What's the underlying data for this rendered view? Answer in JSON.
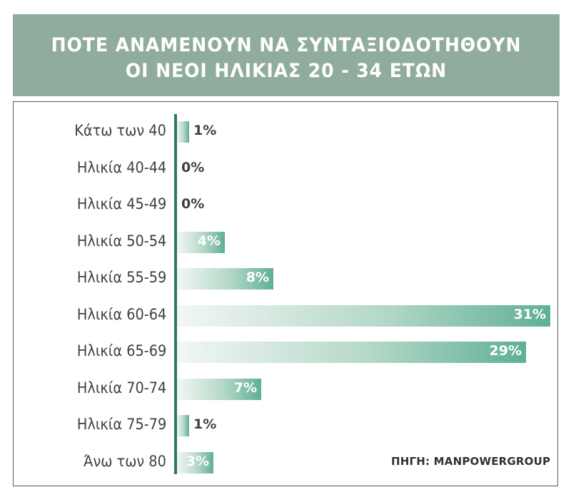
{
  "title": {
    "line1": "ΠΟΤΕ ΑΝΑΜΕΝΟΥΝ ΝΑ ΣΥΝΤΑΞΙΟΔΟΤΗΘΟΥΝ",
    "line2": "ΟΙ ΝΕΟΙ ΗΛΙΚΙΑΣ 20 - 34 ΕΤΩΝ"
  },
  "source": "ΠΗΓΗ: MANPOWERGROUP",
  "colors": {
    "header_bg": "#8fac9d",
    "axis": "#2f7a62",
    "bar_end": "#5fb094",
    "bar_start": "#f2f7f4"
  },
  "chart_data": {
    "type": "bar",
    "orientation": "horizontal",
    "title": "ΠΟΤΕ ΑΝΑΜΕΝΟΥΝ ΝΑ ΣΥΝΤΑΞΙΟΔΟΤΗΘΟΥΝ ΟΙ ΝΕΟΙ ΗΛΙΚΙΑΣ 20 - 34 ΕΤΩΝ",
    "categories": [
      "Κάτω των 40",
      "Ηλικία 40-44",
      "Ηλικία 45-49",
      "Ηλικία 50-54",
      "Ηλικία 55-59",
      "Ηλικία 60-64",
      "Ηλικία 65-69",
      "Ηλικία 70-74",
      "Ηλικία 75-79",
      "Άνω των 80"
    ],
    "values": [
      1,
      0,
      0,
      4,
      8,
      31,
      29,
      7,
      1,
      3
    ],
    "value_labels": [
      "1%",
      "0%",
      "0%",
      "4%",
      "8%",
      "31%",
      "29%",
      "7%",
      "1%",
      "3%"
    ],
    "unit": "%",
    "xlim": [
      0,
      31
    ],
    "grid": false,
    "legend": false
  }
}
